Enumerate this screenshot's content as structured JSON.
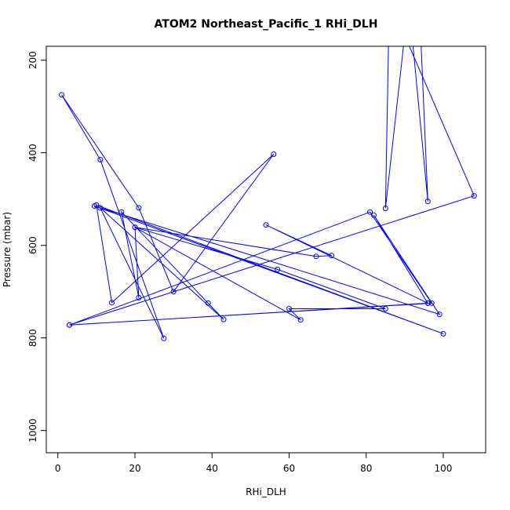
{
  "chart_data": {
    "type": "line",
    "title": "ATOM2 Northeast_Pacific_1 RHi_DLH",
    "xlabel": "RHi_DLH",
    "ylabel": "Pressure (mbar)",
    "xlim": [
      -3,
      111
    ],
    "ylim": [
      1048,
      170
    ],
    "y_reversed": true,
    "xticks": [
      0,
      20,
      40,
      60,
      80,
      100
    ],
    "yticks": [
      200,
      400,
      600,
      800,
      1000
    ],
    "color": "#0000ff",
    "grid": false,
    "legend": "none",
    "series": [
      {
        "points": [
          [
            94,
            120
          ],
          [
            96,
            505
          ],
          [
            91,
            70
          ],
          [
            85,
            520
          ],
          [
            86,
            70
          ],
          [
            108,
            493
          ],
          [
            3,
            772
          ],
          [
            97,
            725
          ],
          [
            81,
            528
          ],
          [
            3,
            772
          ],
          [
            96,
            725
          ],
          [
            82,
            535
          ],
          [
            99,
            749
          ],
          [
            9.5,
            515
          ],
          [
            100,
            791
          ],
          [
            10,
            513
          ],
          [
            14,
            724
          ],
          [
            56,
            403
          ],
          [
            30,
            700
          ],
          [
            21,
            519
          ],
          [
            1,
            275
          ],
          [
            11,
            415
          ],
          [
            27.5,
            801
          ],
          [
            11,
            519
          ],
          [
            43,
            760
          ],
          [
            39,
            725
          ],
          [
            16.5,
            528
          ],
          [
            21,
            713
          ],
          [
            20,
            561
          ],
          [
            63,
            761
          ],
          [
            60,
            737
          ],
          [
            85,
            737
          ],
          [
            57,
            652
          ],
          [
            20,
            561
          ],
          [
            67,
            624
          ],
          [
            71,
            622
          ],
          [
            54,
            556
          ],
          [
            96,
            725
          ]
        ]
      }
    ]
  }
}
